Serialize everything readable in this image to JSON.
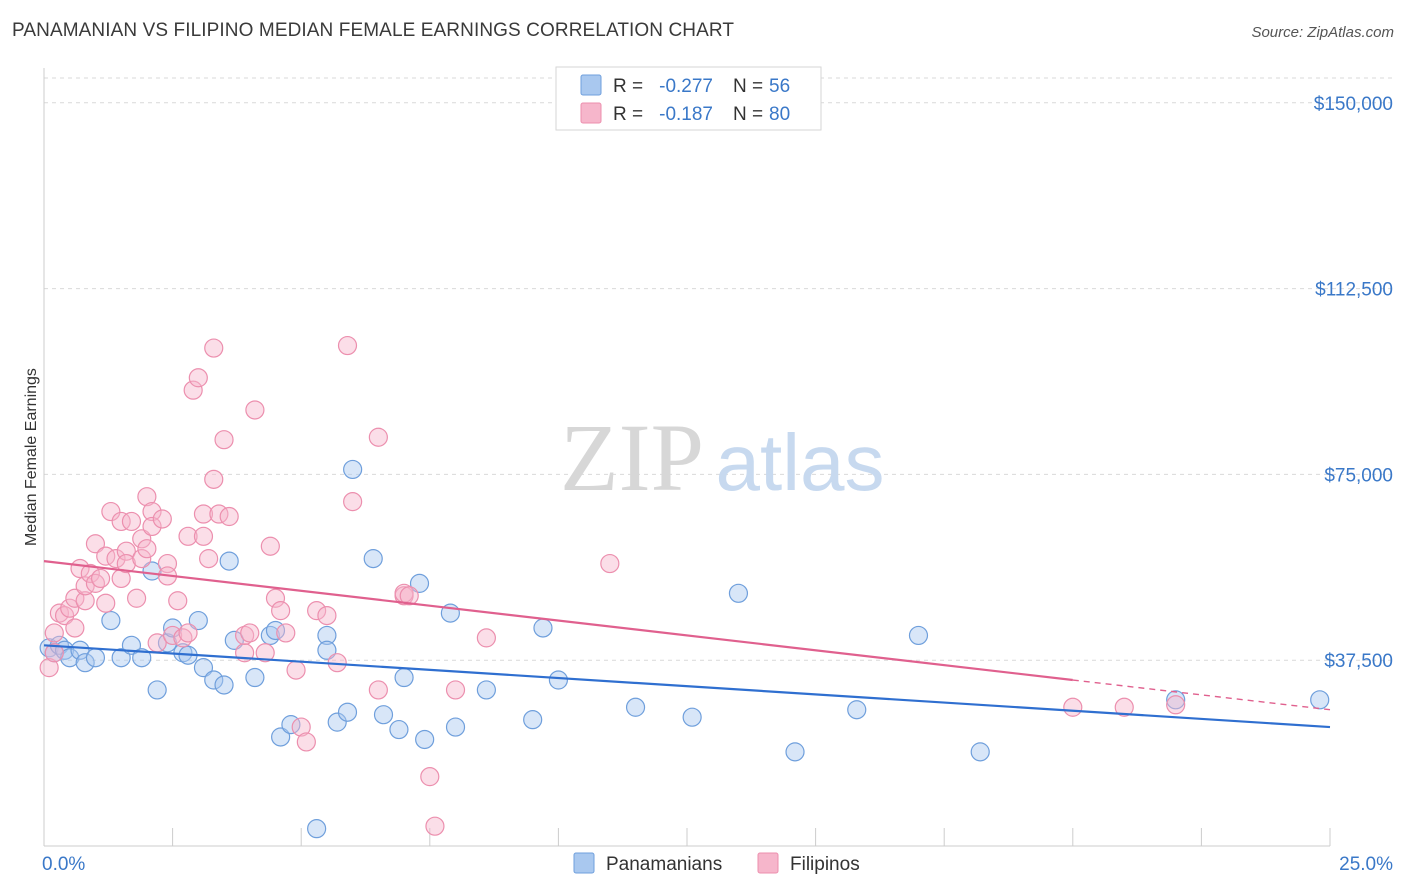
{
  "title": "PANAMANIAN VS FILIPINO MEDIAN FEMALE EARNINGS CORRELATION CHART",
  "source": "Source: ZipAtlas.com",
  "watermark": {
    "zip": "ZIP",
    "atlas": "atlas"
  },
  "colors": {
    "blue_fill": "#a9c8ef",
    "blue_stroke": "#6f9fdc",
    "blue_line": "#2f6fd0",
    "pink_fill": "#f6b6cb",
    "pink_stroke": "#ec8fae",
    "pink_line": "#e0608e",
    "value_text": "#3a78c8",
    "grid": "#d9d9d9"
  },
  "stats_box": {
    "rows": [
      {
        "r_label": "R =",
        "r_value": "-0.277",
        "n_label": "N =",
        "n_value": "56",
        "color": "blue"
      },
      {
        "r_label": "R =",
        "r_value": "-0.187",
        "n_label": "N =",
        "n_value": "80",
        "color": "pink"
      }
    ]
  },
  "chart_data": {
    "type": "scatter",
    "title": "PANAMANIAN VS FILIPINO MEDIAN FEMALE EARNINGS CORRELATION CHART",
    "xlabel": "",
    "ylabel": "Median Female Earnings",
    "xlim": [
      0,
      25
    ],
    "ylim": [
      0,
      155000
    ],
    "x_tick_labels": [
      "0.0%",
      "25.0%"
    ],
    "y_ticks": [
      37500,
      75000,
      112500,
      150000
    ],
    "y_tick_labels": [
      "$37,500",
      "$75,000",
      "$112,500",
      "$150,000"
    ],
    "grid": true,
    "legend_position": "bottom-center",
    "series": [
      {
        "name": "Panamanians",
        "color": "blue",
        "trend": {
          "x": [
            0,
            25
          ],
          "y": [
            40500,
            24000
          ]
        },
        "points": [
          [
            0.1,
            40000
          ],
          [
            0.2,
            39000
          ],
          [
            0.3,
            40500
          ],
          [
            0.4,
            39500
          ],
          [
            0.5,
            38000
          ],
          [
            0.7,
            39500
          ],
          [
            0.8,
            37000
          ],
          [
            1.0,
            38000
          ],
          [
            1.3,
            45500
          ],
          [
            1.5,
            38000
          ],
          [
            1.7,
            40500
          ],
          [
            1.9,
            38000
          ],
          [
            2.1,
            55500
          ],
          [
            2.2,
            31500
          ],
          [
            2.4,
            41000
          ],
          [
            2.5,
            44000
          ],
          [
            2.7,
            39000
          ],
          [
            2.8,
            38500
          ],
          [
            3.0,
            45500
          ],
          [
            3.1,
            36000
          ],
          [
            3.3,
            33500
          ],
          [
            3.5,
            32500
          ],
          [
            3.6,
            57500
          ],
          [
            3.7,
            41500
          ],
          [
            4.1,
            34000
          ],
          [
            4.4,
            42500
          ],
          [
            4.5,
            43500
          ],
          [
            4.6,
            22000
          ],
          [
            4.8,
            24500
          ],
          [
            5.3,
            3500
          ],
          [
            5.5,
            42500
          ],
          [
            5.5,
            39500
          ],
          [
            5.7,
            25000
          ],
          [
            5.9,
            27000
          ],
          [
            6.0,
            76000
          ],
          [
            6.4,
            58000
          ],
          [
            6.6,
            26500
          ],
          [
            6.9,
            23500
          ],
          [
            7.0,
            34000
          ],
          [
            7.3,
            53000
          ],
          [
            7.4,
            21500
          ],
          [
            7.9,
            47000
          ],
          [
            8.0,
            24000
          ],
          [
            8.6,
            31500
          ],
          [
            9.5,
            25500
          ],
          [
            9.7,
            44000
          ],
          [
            10.0,
            33500
          ],
          [
            11.5,
            28000
          ],
          [
            12.6,
            26000
          ],
          [
            13.5,
            51000
          ],
          [
            14.6,
            19000
          ],
          [
            15.8,
            27500
          ],
          [
            17.0,
            42500
          ],
          [
            18.2,
            19000
          ],
          [
            22.0,
            29500
          ],
          [
            24.8,
            29500
          ]
        ]
      },
      {
        "name": "Filipinos",
        "color": "pink",
        "trend": {
          "x": [
            0,
            20
          ],
          "y": [
            57500,
            33500
          ]
        },
        "trend_dashed": {
          "x": [
            20,
            25
          ],
          "y": [
            33500,
            27500
          ]
        },
        "points": [
          [
            0.1,
            36000
          ],
          [
            0.2,
            39000
          ],
          [
            0.2,
            43000
          ],
          [
            0.3,
            47000
          ],
          [
            0.4,
            46500
          ],
          [
            0.5,
            48000
          ],
          [
            0.6,
            44000
          ],
          [
            0.6,
            50000
          ],
          [
            0.7,
            56000
          ],
          [
            0.8,
            49500
          ],
          [
            0.8,
            52500
          ],
          [
            0.9,
            55000
          ],
          [
            1.0,
            53000
          ],
          [
            1.0,
            61000
          ],
          [
            1.1,
            54000
          ],
          [
            1.2,
            49000
          ],
          [
            1.2,
            58500
          ],
          [
            1.3,
            67500
          ],
          [
            1.4,
            58000
          ],
          [
            1.5,
            65500
          ],
          [
            1.5,
            54000
          ],
          [
            1.6,
            59500
          ],
          [
            1.6,
            57000
          ],
          [
            1.7,
            65500
          ],
          [
            1.8,
            50000
          ],
          [
            1.9,
            58000
          ],
          [
            1.9,
            62000
          ],
          [
            2.0,
            60000
          ],
          [
            2.0,
            70500
          ],
          [
            2.1,
            67500
          ],
          [
            2.1,
            64500
          ],
          [
            2.2,
            41000
          ],
          [
            2.3,
            66000
          ],
          [
            2.4,
            57000
          ],
          [
            2.4,
            54500
          ],
          [
            2.5,
            42500
          ],
          [
            2.6,
            49500
          ],
          [
            2.7,
            42000
          ],
          [
            2.8,
            62500
          ],
          [
            2.8,
            43000
          ],
          [
            2.9,
            92000
          ],
          [
            3.0,
            94500
          ],
          [
            3.1,
            67000
          ],
          [
            3.1,
            62500
          ],
          [
            3.2,
            58000
          ],
          [
            3.3,
            74000
          ],
          [
            3.3,
            100500
          ],
          [
            3.4,
            67000
          ],
          [
            3.5,
            82000
          ],
          [
            3.6,
            66500
          ],
          [
            3.9,
            39000
          ],
          [
            3.9,
            42500
          ],
          [
            4.0,
            43000
          ],
          [
            4.1,
            88000
          ],
          [
            4.3,
            39000
          ],
          [
            4.4,
            60500
          ],
          [
            4.5,
            50000
          ],
          [
            4.6,
            47500
          ],
          [
            4.7,
            43000
          ],
          [
            4.9,
            35500
          ],
          [
            5.0,
            24000
          ],
          [
            5.1,
            21000
          ],
          [
            5.3,
            47500
          ],
          [
            5.5,
            46500
          ],
          [
            5.7,
            37000
          ],
          [
            5.9,
            101000
          ],
          [
            6.0,
            69500
          ],
          [
            6.5,
            31500
          ],
          [
            6.5,
            82500
          ],
          [
            7.0,
            50500
          ],
          [
            7.0,
            51000
          ],
          [
            7.1,
            50500
          ],
          [
            7.5,
            14000
          ],
          [
            7.6,
            4000
          ],
          [
            8.0,
            31500
          ],
          [
            8.6,
            42000
          ],
          [
            11.0,
            57000
          ],
          [
            20.0,
            28000
          ],
          [
            22.0,
            28500
          ],
          [
            21.0,
            28000
          ]
        ]
      }
    ]
  },
  "legend": {
    "items": [
      {
        "label": "Panamanians",
        "color": "blue"
      },
      {
        "label": "Filipinos",
        "color": "pink"
      }
    ]
  }
}
